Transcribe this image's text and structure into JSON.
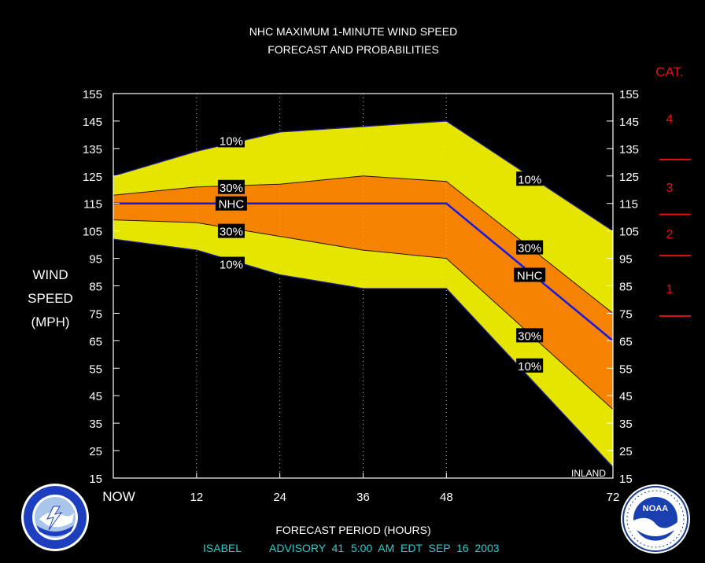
{
  "chart_data": {
    "type": "area",
    "title": "NHC MAXIMUM 1-MINUTE WIND SPEED",
    "subtitle": "FORECAST AND PROBABILITIES",
    "xlabel": "FORECAST PERIOD (HOURS)",
    "ylabel_lines": [
      "WIND",
      "SPEED",
      "(MPH)"
    ],
    "x": [
      0,
      12,
      24,
      36,
      48,
      72
    ],
    "xlim": [
      0,
      72
    ],
    "ylim": [
      15,
      155
    ],
    "x_tick_labels": [
      "NOW",
      "12",
      "24",
      "36",
      "48",
      "72"
    ],
    "y_ticks": [
      15,
      25,
      35,
      45,
      55,
      65,
      75,
      85,
      95,
      105,
      115,
      125,
      135,
      145,
      155
    ],
    "gridlines": "vertical dotted at 12, 24, 36, 48",
    "series": [
      {
        "name": "10%",
        "values": [
          125,
          134,
          141,
          143,
          145,
          105
        ]
      },
      {
        "name": "30%",
        "values": [
          118,
          121,
          122,
          125,
          123,
          75
        ]
      },
      {
        "name": "NHC",
        "values": [
          115,
          115,
          115,
          115,
          115,
          65
        ]
      },
      {
        "name": "30%",
        "values": [
          109,
          108,
          103,
          98,
          95,
          40
        ]
      },
      {
        "name": "10%",
        "values": [
          102,
          98,
          89,
          84,
          84,
          19
        ]
      }
    ],
    "band_labels": [
      {
        "text": "10%",
        "x": 17,
        "y": 138
      },
      {
        "text": "30%",
        "x": 17,
        "y": 121
      },
      {
        "text": "NHC",
        "x": 17,
        "y": 115
      },
      {
        "text": "30%",
        "x": 17,
        "y": 105
      },
      {
        "text": "10%",
        "x": 17,
        "y": 93
      },
      {
        "text": "10%",
        "x": 60,
        "y": 124
      },
      {
        "text": "30%",
        "x": 60,
        "y": 99
      },
      {
        "text": "NHC",
        "x": 60,
        "y": 89
      },
      {
        "text": "30%",
        "x": 60,
        "y": 67
      },
      {
        "text": "10%",
        "x": 60,
        "y": 56
      }
    ],
    "annotation": "INLAND",
    "category_title": "CAT.",
    "categories": [
      {
        "label": "4",
        "y": 146
      },
      {
        "label": "3",
        "y": 121
      },
      {
        "label": "2",
        "y": 104
      },
      {
        "label": "1",
        "y": 84
      }
    ],
    "category_thresholds": [
      74,
      96,
      111,
      131
    ],
    "colors": {
      "outer_band": "#e5e500",
      "inner_band": "#f58200",
      "nhc_line": "#1616e6",
      "band_edge": "#1e1e90",
      "inner_edge": "#2a1600",
      "text": "#ffffff",
      "category": "#e61010",
      "footer": "#33cccc",
      "background": "#000000"
    }
  },
  "footer": {
    "storm": "ISABEL",
    "advisory": "ADVISORY  41",
    "time": "5:00  AM  EDT  SEP  16  2003"
  },
  "logos": {
    "left": {
      "icon": "nws-logo"
    },
    "right": {
      "icon": "noaa-logo",
      "text": "NOAA"
    }
  }
}
